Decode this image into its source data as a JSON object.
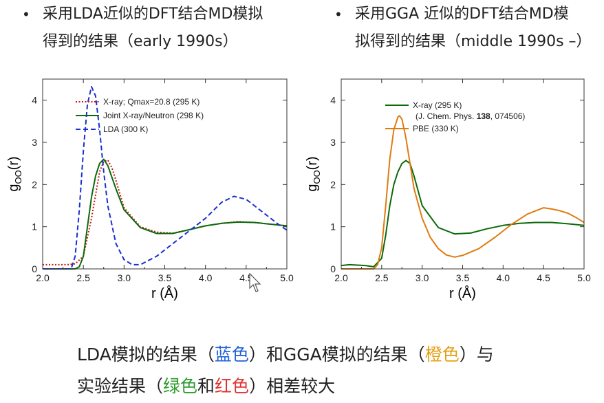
{
  "bullets": {
    "symbol": "•",
    "left": {
      "line1": "采用LDA近似的DFT结合MD模拟",
      "line2": "得到的结果（early 1990s）"
    },
    "right": {
      "line1": "采用GGA 近似的DFT结合MD模",
      "line2": "拟得到的结果（middle 1990s –）"
    }
  },
  "caption": {
    "line1": {
      "t1": "LDA模拟的结果（",
      "blue": "蓝色",
      "t2": "）和GGA模拟的结果（",
      "orange": "橙色",
      "t3": "）与"
    },
    "line2": {
      "t1": "实验结果（",
      "green": "绿色",
      "t2": "和",
      "red": "红色",
      "t3": "）相差较大"
    }
  },
  "colors": {
    "green": "#0a6a0a",
    "red": "#cc1111",
    "blue": "#1a2fd0",
    "orange": "#e07b10"
  },
  "chart_data": [
    {
      "type": "line",
      "xlabel": "r (Å)",
      "ylabel_main": "g",
      "ylabel_sub": "OO",
      "ylabel_tail": "(r)",
      "xlim": [
        2.0,
        5.0
      ],
      "ylim": [
        0,
        4.5
      ],
      "xticks": [
        "2.0",
        "2.5",
        "3.0",
        "3.5",
        "4.0",
        "4.5",
        "5.0"
      ],
      "yticks": [
        "0",
        "1",
        "2",
        "3",
        "4"
      ],
      "legend_position": "top-right",
      "series": [
        {
          "name": "X-ray; Qmax=20.8 (295 K)",
          "color": "#cc1111",
          "style": "dotted",
          "x": [
            2.0,
            2.3,
            2.4,
            2.5,
            2.6,
            2.7,
            2.75,
            2.8,
            2.85,
            2.9,
            3.0,
            3.2,
            3.4,
            3.6,
            3.8,
            4.0,
            4.2,
            4.4,
            4.6,
            4.8,
            5.0
          ],
          "y": [
            0.1,
            0.1,
            0.12,
            0.3,
            1.2,
            2.3,
            2.55,
            2.58,
            2.4,
            2.1,
            1.45,
            1.0,
            0.87,
            0.85,
            0.93,
            1.02,
            1.08,
            1.12,
            1.1,
            1.06,
            1.02
          ]
        },
        {
          "name": "Joint X-ray/Neutron (298 K)",
          "color": "#0a6a0a",
          "style": "solid",
          "x": [
            2.0,
            2.4,
            2.45,
            2.5,
            2.55,
            2.6,
            2.65,
            2.7,
            2.75,
            2.8,
            2.9,
            3.0,
            3.2,
            3.4,
            3.6,
            3.8,
            4.0,
            4.2,
            4.4,
            4.6,
            4.8,
            5.0
          ],
          "y": [
            0.0,
            0.0,
            0.05,
            0.3,
            1.0,
            1.7,
            2.2,
            2.5,
            2.6,
            2.45,
            1.9,
            1.4,
            0.98,
            0.84,
            0.84,
            0.93,
            1.02,
            1.08,
            1.11,
            1.1,
            1.06,
            1.02
          ]
        },
        {
          "name": "LDA (300 K)",
          "color": "#1a2fd0",
          "style": "dashed",
          "x": [
            2.0,
            2.35,
            2.4,
            2.45,
            2.5,
            2.55,
            2.6,
            2.65,
            2.7,
            2.75,
            2.8,
            2.9,
            3.0,
            3.1,
            3.2,
            3.4,
            3.6,
            3.8,
            4.0,
            4.2,
            4.35,
            4.5,
            4.7,
            4.9,
            5.0
          ],
          "y": [
            0.0,
            0.0,
            0.3,
            1.4,
            2.8,
            3.9,
            4.32,
            4.1,
            3.3,
            2.3,
            1.5,
            0.6,
            0.22,
            0.1,
            0.1,
            0.3,
            0.6,
            0.9,
            1.2,
            1.58,
            1.72,
            1.65,
            1.35,
            1.05,
            0.92
          ]
        }
      ]
    },
    {
      "type": "line",
      "xlabel": "r (Å)",
      "ylabel_main": "g",
      "ylabel_sub": "OO",
      "ylabel_tail": "(r)",
      "xlim": [
        2.0,
        5.0
      ],
      "ylim": [
        0,
        4.5
      ],
      "xticks": [
        "2.0",
        "2.5",
        "3.0",
        "3.5",
        "4.0",
        "4.5",
        "5.0"
      ],
      "yticks": [
        "0",
        "1",
        "2",
        "3",
        "4"
      ],
      "legend_position": "top-left",
      "series": [
        {
          "name": "X-ray (295 K)",
          "note_prefix": "(J. Chem. Phys. ",
          "note_bold": "138",
          "note_suffix": ", 074506)",
          "color": "#0a6a0a",
          "style": "solid",
          "x": [
            2.0,
            2.1,
            2.3,
            2.4,
            2.5,
            2.55,
            2.6,
            2.65,
            2.7,
            2.75,
            2.8,
            2.85,
            2.9,
            3.0,
            3.2,
            3.4,
            3.6,
            3.8,
            4.0,
            4.2,
            4.4,
            4.6,
            4.8,
            5.0
          ],
          "y": [
            0.08,
            0.1,
            0.08,
            0.05,
            0.25,
            0.8,
            1.5,
            2.0,
            2.3,
            2.5,
            2.57,
            2.5,
            2.2,
            1.5,
            0.98,
            0.83,
            0.85,
            0.95,
            1.03,
            1.08,
            1.1,
            1.1,
            1.07,
            1.03
          ]
        },
        {
          "name": "PBE (330 K)",
          "color": "#e07b10",
          "style": "solid",
          "x": [
            2.0,
            2.4,
            2.45,
            2.5,
            2.55,
            2.6,
            2.65,
            2.7,
            2.72,
            2.75,
            2.8,
            2.85,
            2.9,
            3.0,
            3.1,
            3.2,
            3.3,
            3.4,
            3.5,
            3.7,
            3.9,
            4.1,
            4.3,
            4.5,
            4.6,
            4.7,
            4.8,
            4.9,
            5.0
          ],
          "y": [
            0.0,
            0.0,
            0.1,
            0.5,
            1.5,
            2.6,
            3.3,
            3.6,
            3.63,
            3.55,
            3.1,
            2.5,
            1.9,
            1.2,
            0.75,
            0.48,
            0.33,
            0.28,
            0.32,
            0.48,
            0.75,
            1.05,
            1.3,
            1.45,
            1.42,
            1.38,
            1.32,
            1.22,
            1.1
          ]
        }
      ]
    }
  ]
}
